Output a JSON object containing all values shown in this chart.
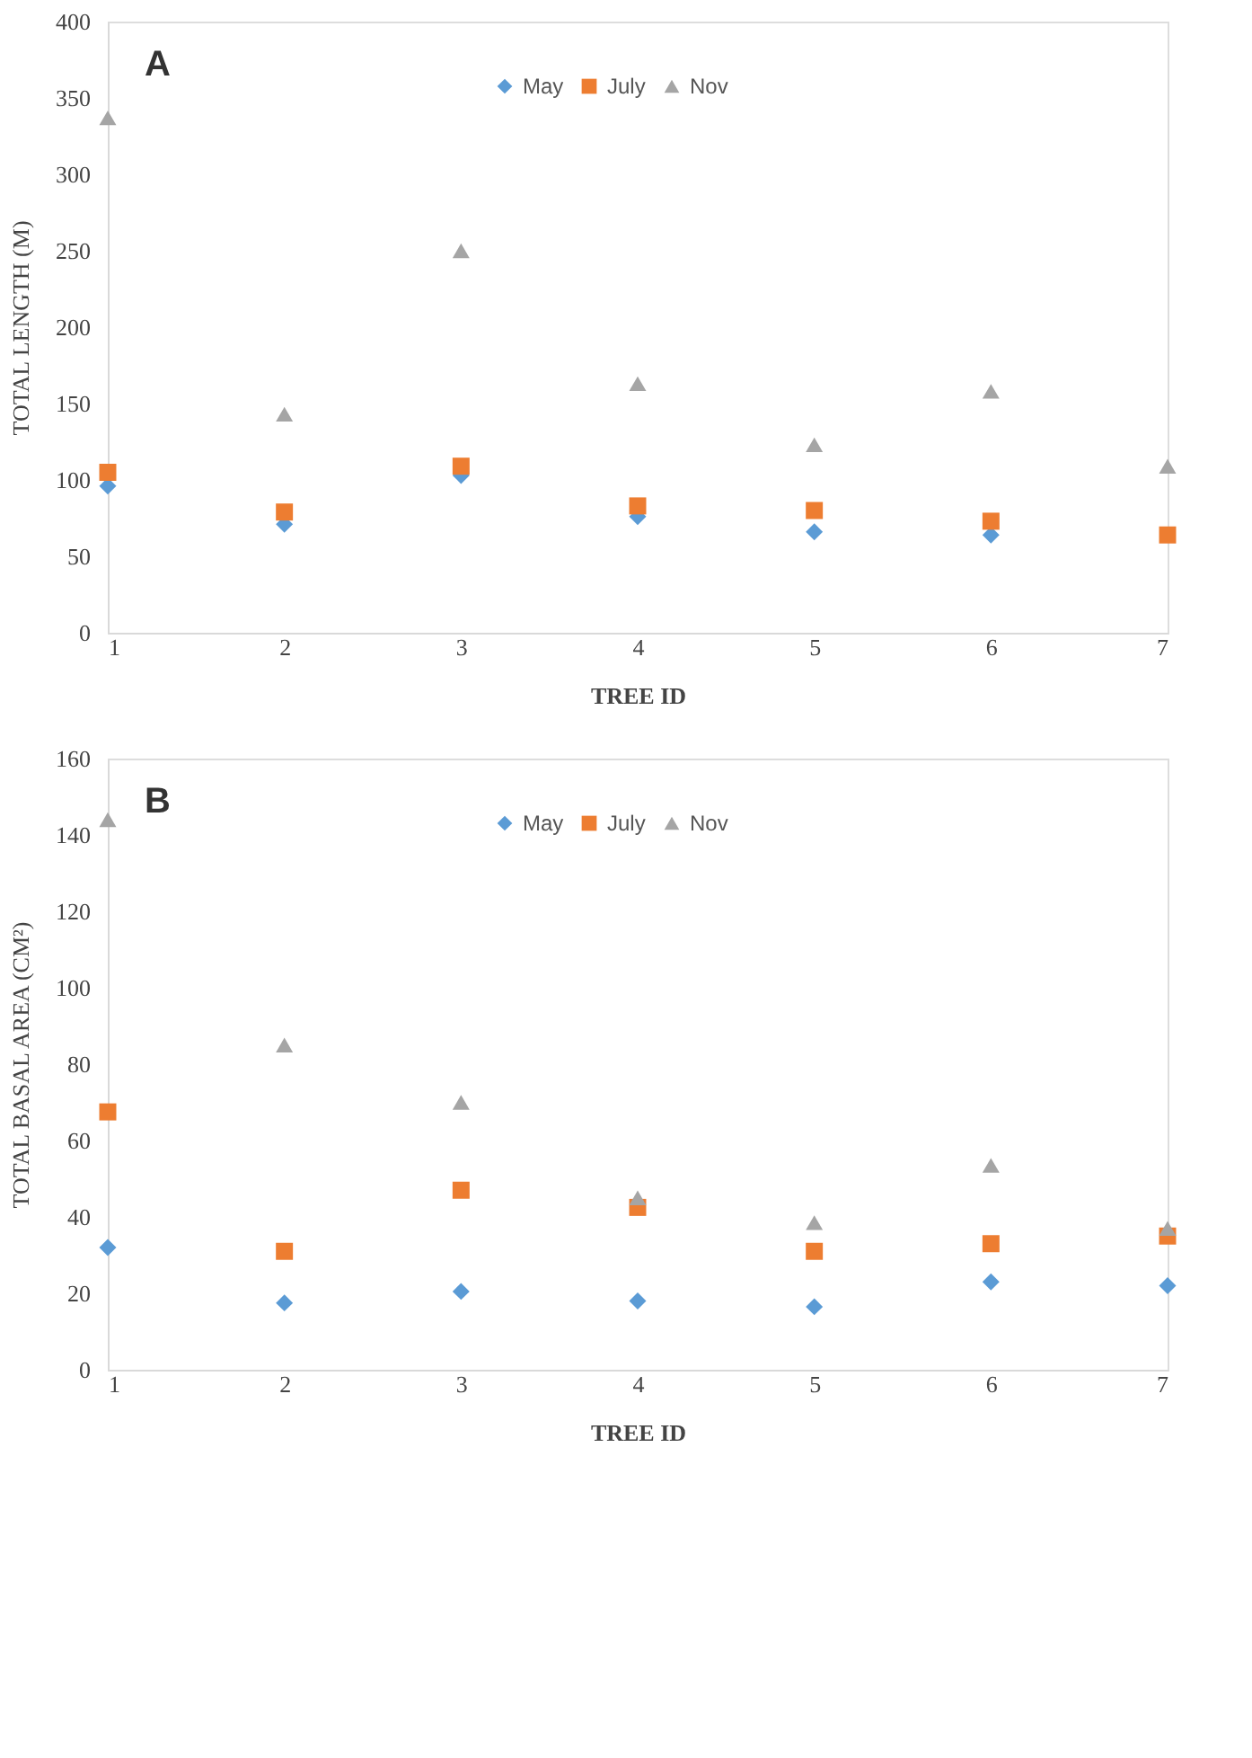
{
  "chart_data": [
    {
      "type": "scatter",
      "title": "A",
      "xlabel": "TREE ID",
      "ylabel": "TOTAL LENGTH (M)",
      "x": [
        1,
        2,
        3,
        4,
        5,
        6,
        7
      ],
      "xlim": [
        1,
        7
      ],
      "xticks": [
        1,
        2,
        3,
        4,
        5,
        6,
        7
      ],
      "ylim": [
        0,
        400
      ],
      "yticks": [
        0,
        50,
        100,
        150,
        200,
        250,
        300,
        350,
        400
      ],
      "grid": false,
      "legend": "top",
      "series": [
        {
          "name": "May",
          "color": "#5b9bd5",
          "marker": "diamond",
          "values": [
            96,
            71,
            103,
            76,
            66,
            64,
            null
          ]
        },
        {
          "name": "July",
          "color": "#ed7d31",
          "marker": "square",
          "values": [
            105,
            79,
            109,
            83,
            80,
            73,
            64
          ]
        },
        {
          "name": "Nov",
          "color": "#a5a5a5",
          "marker": "triangle",
          "values": [
            337,
            143,
            250,
            163,
            123,
            158,
            109
          ]
        }
      ]
    },
    {
      "type": "scatter",
      "title": "B",
      "xlabel": "TREE ID",
      "ylabel": "TOTAL BASAL AREA (CM²)",
      "x": [
        1,
        2,
        3,
        4,
        5,
        6,
        7
      ],
      "xlim": [
        1,
        7
      ],
      "xticks": [
        1,
        2,
        3,
        4,
        5,
        6,
        7
      ],
      "ylim": [
        0,
        160
      ],
      "yticks": [
        0,
        20,
        40,
        60,
        80,
        100,
        120,
        140,
        160
      ],
      "grid": false,
      "legend": "top",
      "series": [
        {
          "name": "May",
          "color": "#5b9bd5",
          "marker": "diamond",
          "values": [
            32,
            17.5,
            20.5,
            18,
            16.5,
            23,
            22
          ]
        },
        {
          "name": "July",
          "color": "#ed7d31",
          "marker": "square",
          "values": [
            67.5,
            31,
            47,
            42.5,
            31,
            33,
            35
          ]
        },
        {
          "name": "Nov",
          "color": "#a5a5a5",
          "marker": "triangle",
          "values": [
            144,
            85,
            70,
            45,
            38.5,
            53.5,
            37
          ]
        }
      ]
    }
  ]
}
